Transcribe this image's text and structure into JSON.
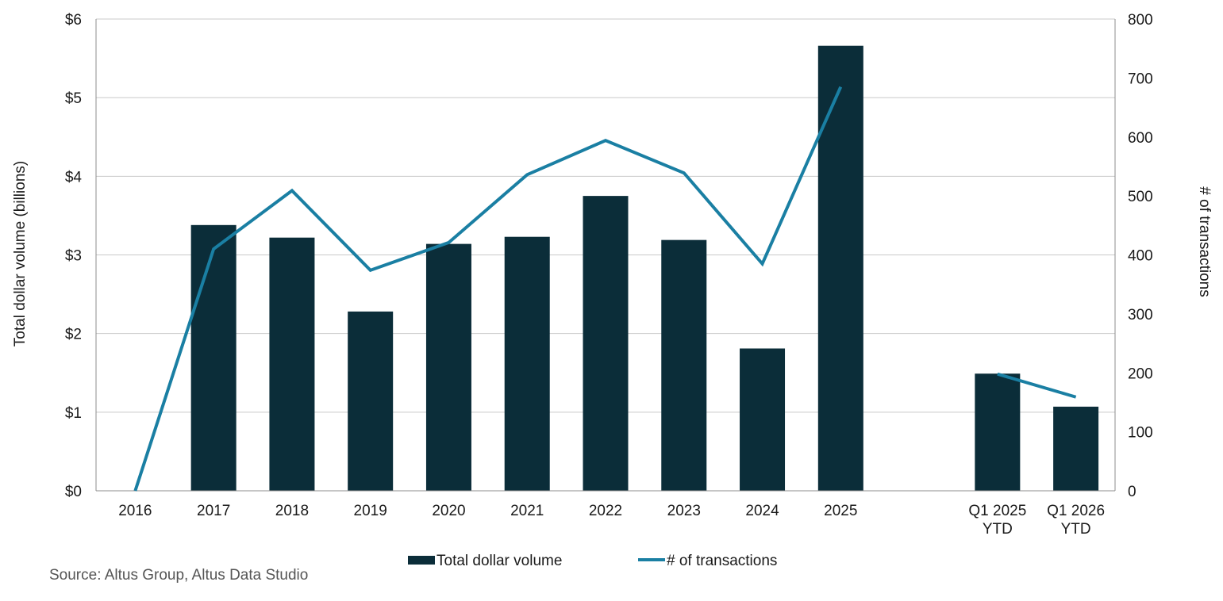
{
  "chart_data": {
    "type": "bar",
    "categories": [
      "2016",
      "2017",
      "2018",
      "2019",
      "2020",
      "2021",
      "2022",
      "2023",
      "2024",
      "2025",
      "",
      "Q1 2025\nYTD",
      "Q1 2026\nYTD"
    ],
    "series": [
      {
        "name": "Total dollar volume",
        "type": "bar",
        "axis": "left",
        "color": "#0b2d39",
        "values": [
          0,
          3.38,
          3.22,
          2.28,
          3.14,
          3.23,
          3.75,
          3.19,
          1.81,
          5.66,
          null,
          1.49,
          1.07
        ]
      },
      {
        "name": "# of transactions",
        "type": "line",
        "axis": "right",
        "color": "#1a7fa3",
        "values": [
          0,
          410,
          509,
          374,
          421,
          536,
          594,
          539,
          385,
          685,
          null,
          198,
          159
        ]
      }
    ],
    "xlabel": "",
    "ylabel": "Total dollar volume (billions)",
    "y2label": "# of transactions",
    "ylim": [
      0,
      6
    ],
    "y2lim": [
      0,
      800
    ],
    "yticks": [
      "$0",
      "$1",
      "$2",
      "$3",
      "$4",
      "$5",
      "$6"
    ],
    "y2ticks": [
      "0",
      "100",
      "200",
      "300",
      "400",
      "500",
      "600",
      "700",
      "800"
    ],
    "grid": true,
    "legend_position": "bottom",
    "source": "Source:  Altus Group, Altus Data Studio"
  }
}
